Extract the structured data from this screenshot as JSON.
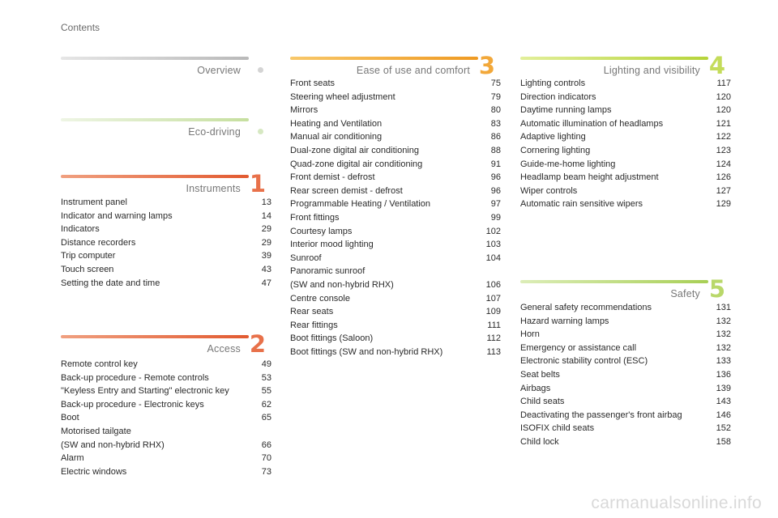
{
  "page": {
    "heading": "Contents",
    "watermark": "carmanualsonline.info"
  },
  "colors": {
    "overview_bar": "#c8c8c8",
    "ecodriving_bar": "#cbe0b5",
    "instruments_bar": "#e8714a",
    "access_bar": "#e8714a",
    "ease_bar": "#f2a83a",
    "lighting_bar": "#c4dc5a",
    "safety_bar": "#b9d86a"
  },
  "col1": {
    "overview": {
      "title": "Overview"
    },
    "ecodriving": {
      "title": "Eco-driving"
    },
    "instruments": {
      "title": "Instruments",
      "number": "1",
      "entries": [
        {
          "label": "Instrument panel",
          "page": "13"
        },
        {
          "label": "Indicator and warning lamps",
          "page": "14"
        },
        {
          "label": "Indicators",
          "page": "29"
        },
        {
          "label": "Distance recorders",
          "page": "29"
        },
        {
          "label": "Trip computer",
          "page": "39"
        },
        {
          "label": "Touch screen",
          "page": "43"
        },
        {
          "label": "Setting the date and time",
          "page": "47"
        }
      ]
    },
    "access": {
      "title": "Access",
      "number": "2",
      "entries": [
        {
          "label": "Remote control key",
          "page": "49"
        },
        {
          "label": "Back-up procedure - Remote controls",
          "page": "53"
        },
        {
          "label": "\"Keyless Entry and Starting\" electronic key",
          "page": "55"
        },
        {
          "label": "Back-up procedure - Electronic keys",
          "page": "62"
        },
        {
          "label": "Boot",
          "page": "65"
        },
        {
          "label": "Motorised tailgate\n    (SW and non-hybrid RHX)",
          "page": "66"
        },
        {
          "label": "Alarm",
          "page": "70"
        },
        {
          "label": "Electric windows",
          "page": "73"
        }
      ]
    }
  },
  "col2": {
    "ease": {
      "title": "Ease of use and comfort",
      "number": "3",
      "entries": [
        {
          "label": "Front seats",
          "page": "75"
        },
        {
          "label": "Steering wheel adjustment",
          "page": "79"
        },
        {
          "label": "Mirrors",
          "page": "80"
        },
        {
          "label": "Heating and Ventilation",
          "page": "83"
        },
        {
          "label": "Manual air conditioning",
          "page": "86"
        },
        {
          "label": "Dual-zone digital air conditioning",
          "page": "88"
        },
        {
          "label": "Quad-zone digital air conditioning",
          "page": "91"
        },
        {
          "label": "Front demist - defrost",
          "page": "96"
        },
        {
          "label": "Rear screen demist - defrost",
          "page": "96"
        },
        {
          "label": "Programmable Heating / Ventilation",
          "page": "97"
        },
        {
          "label": "Front fittings",
          "page": "99"
        },
        {
          "label": "Courtesy lamps",
          "page": "102"
        },
        {
          "label": "Interior mood lighting",
          "page": "103"
        },
        {
          "label": "Sunroof",
          "page": "104"
        },
        {
          "label": "Panoramic sunroof\n    (SW and non-hybrid RHX)",
          "page": "106"
        },
        {
          "label": "Centre console",
          "page": "107"
        },
        {
          "label": "Rear seats",
          "page": "109"
        },
        {
          "label": "Rear fittings",
          "page": "111"
        },
        {
          "label": "Boot fittings (Saloon)",
          "page": "112"
        },
        {
          "label": "Boot fittings (SW and non-hybrid RHX)",
          "page": "113"
        }
      ]
    }
  },
  "col3": {
    "lighting": {
      "title": "Lighting and visibility",
      "number": "4",
      "entries": [
        {
          "label": "Lighting controls",
          "page": "117"
        },
        {
          "label": "Direction indicators",
          "page": "120"
        },
        {
          "label": "Daytime running lamps",
          "page": "120"
        },
        {
          "label": "Automatic illumination of headlamps",
          "page": "121"
        },
        {
          "label": "Adaptive lighting",
          "page": "122"
        },
        {
          "label": "Cornering lighting",
          "page": "123"
        },
        {
          "label": "Guide-me-home lighting",
          "page": "124"
        },
        {
          "label": "Headlamp beam height adjustment",
          "page": "126"
        },
        {
          "label": "Wiper controls",
          "page": "127"
        },
        {
          "label": "Automatic rain sensitive wipers",
          "page": "129"
        }
      ]
    },
    "safety": {
      "title": "Safety",
      "number": "5",
      "entries": [
        {
          "label": "General safety recommendations",
          "page": "131"
        },
        {
          "label": "Hazard warning lamps",
          "page": "132"
        },
        {
          "label": "Horn",
          "page": "132"
        },
        {
          "label": "Emergency or assistance call",
          "page": "132"
        },
        {
          "label": "Electronic stability control (ESC)",
          "page": "133"
        },
        {
          "label": "Seat belts",
          "page": "136"
        },
        {
          "label": "Airbags",
          "page": "139"
        },
        {
          "label": "Child seats",
          "page": "143"
        },
        {
          "label": "Deactivating the passenger's front airbag",
          "page": "146"
        },
        {
          "label": "ISOFIX child seats",
          "page": "152"
        },
        {
          "label": "Child lock",
          "page": "158"
        }
      ]
    }
  }
}
